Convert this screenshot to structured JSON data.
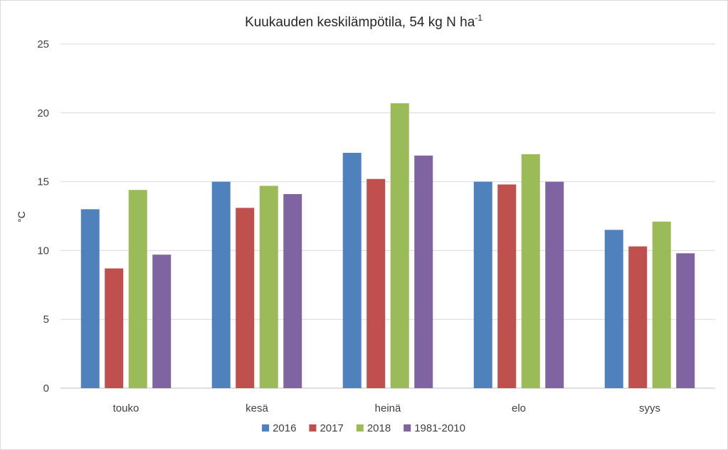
{
  "chart_data": {
    "type": "bar",
    "title": "Kuukauden keskilämpötila, 54 kg N ha",
    "title_superscript": "-1",
    "xlabel": "",
    "ylabel": "°C",
    "categories": [
      "touko",
      "kesä",
      "heinä",
      "elo",
      "syys"
    ],
    "series": [
      {
        "name": "2016",
        "color": "#4f81bd",
        "values": [
          13.0,
          15.0,
          17.1,
          15.0,
          11.5
        ]
      },
      {
        "name": "2017",
        "color": "#c0504d",
        "values": [
          8.7,
          13.1,
          15.2,
          14.8,
          10.3
        ]
      },
      {
        "name": "2018",
        "color": "#9bbb59",
        "values": [
          14.4,
          14.7,
          20.7,
          17.0,
          12.1
        ]
      },
      {
        "name": "1981-2010",
        "color": "#8064a2",
        "values": [
          9.7,
          14.1,
          16.9,
          15.0,
          9.8
        ]
      }
    ],
    "ylim": [
      0,
      25
    ],
    "yticks": [
      0,
      5,
      10,
      15,
      20,
      25
    ],
    "grid": true,
    "legend_position": "bottom"
  }
}
